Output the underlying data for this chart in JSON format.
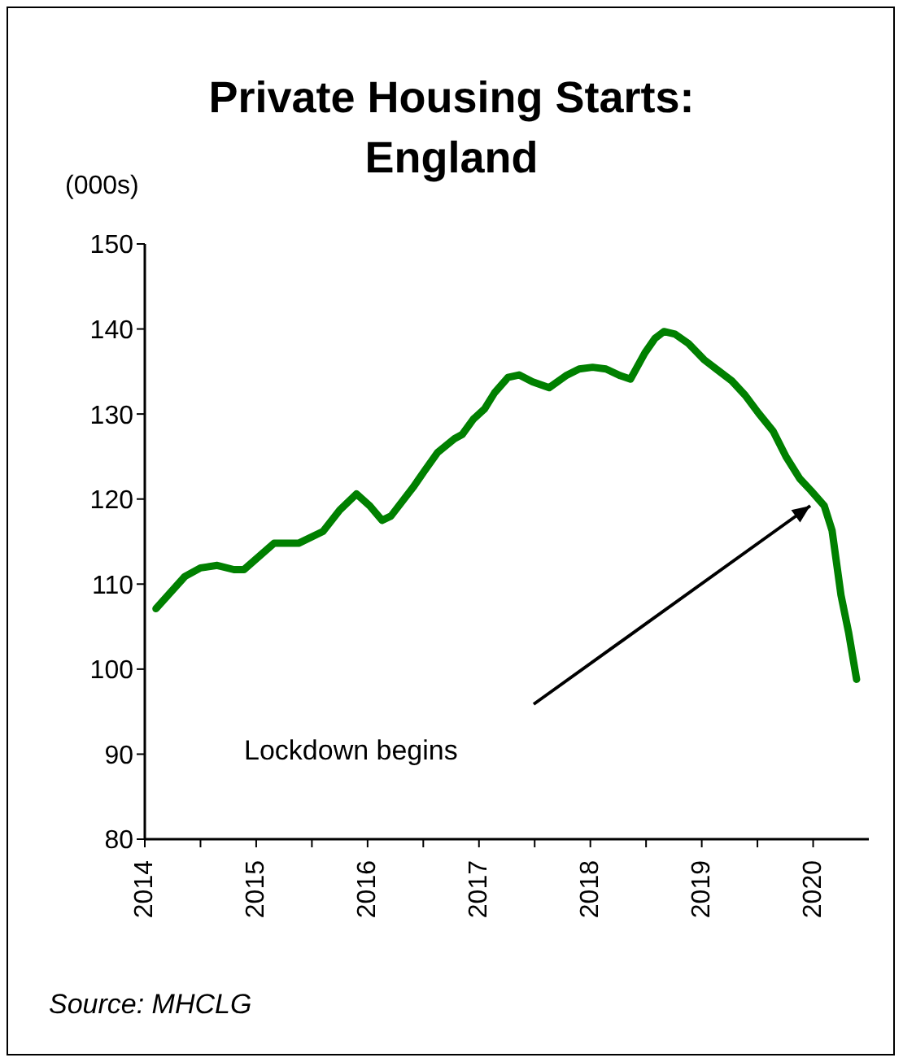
{
  "chart_data": {
    "type": "line",
    "title": "Private Housing Starts:\nEngland",
    "ylabel": "(000s)",
    "x": [
      2014.1,
      2014.36,
      2014.5,
      2014.65,
      2014.8,
      2014.89,
      2015.16,
      2015.38,
      2015.6,
      2015.75,
      2015.9,
      2016.02,
      2016.13,
      2016.21,
      2016.41,
      2016.51,
      2016.63,
      2016.78,
      2016.85,
      2016.95,
      2017.05,
      2017.14,
      2017.26,
      2017.36,
      2017.48,
      2017.63,
      2017.78,
      2017.9,
      2018.02,
      2018.14,
      2018.27,
      2018.36,
      2018.49,
      2018.58,
      2018.66,
      2018.76,
      2018.88,
      2019.02,
      2019.15,
      2019.27,
      2019.39,
      2019.51,
      2019.64,
      2019.76,
      2019.88,
      2019.98,
      2020.1,
      2020.17,
      2020.25,
      2020.32,
      2020.39
    ],
    "series": [
      {
        "color": "#008000",
        "values": [
          107.1,
          110.9,
          111.9,
          112.2,
          111.7,
          111.7,
          114.8,
          114.8,
          116.2,
          118.7,
          120.6,
          119.2,
          117.5,
          118.0,
          121.4,
          123.3,
          125.5,
          127.1,
          127.6,
          129.4,
          130.6,
          132.5,
          134.3,
          134.6,
          133.8,
          133.1,
          134.5,
          135.3,
          135.5,
          135.3,
          134.5,
          134.1,
          137.2,
          138.9,
          139.7,
          139.4,
          138.3,
          136.4,
          135.1,
          133.9,
          132.2,
          130.1,
          128.0,
          124.9,
          122.4,
          121.0,
          119.2,
          116.3,
          108.7,
          104.2,
          98.8
        ]
      }
    ],
    "xlim": [
      2014,
      2020.5
    ],
    "xticks": [
      2014,
      {
        "value": 2014.5,
        "label": null
      },
      2015,
      {
        "value": 2015.5,
        "label": null
      },
      2016,
      {
        "value": 2016.5,
        "label": null
      },
      2017,
      {
        "value": 2017.5,
        "label": null
      },
      2018,
      {
        "value": 2018.5,
        "label": null
      },
      2019,
      {
        "value": 2019.5,
        "label": null
      },
      2020
    ],
    "ylim": [
      80,
      150
    ],
    "yticks": [
      80,
      90,
      100,
      110,
      120,
      130,
      140,
      150
    ],
    "grid": false,
    "marker": "none",
    "line_style": "solid",
    "annotations": [
      "Lockdown begins",
      "Source: MHCLG"
    ]
  }
}
